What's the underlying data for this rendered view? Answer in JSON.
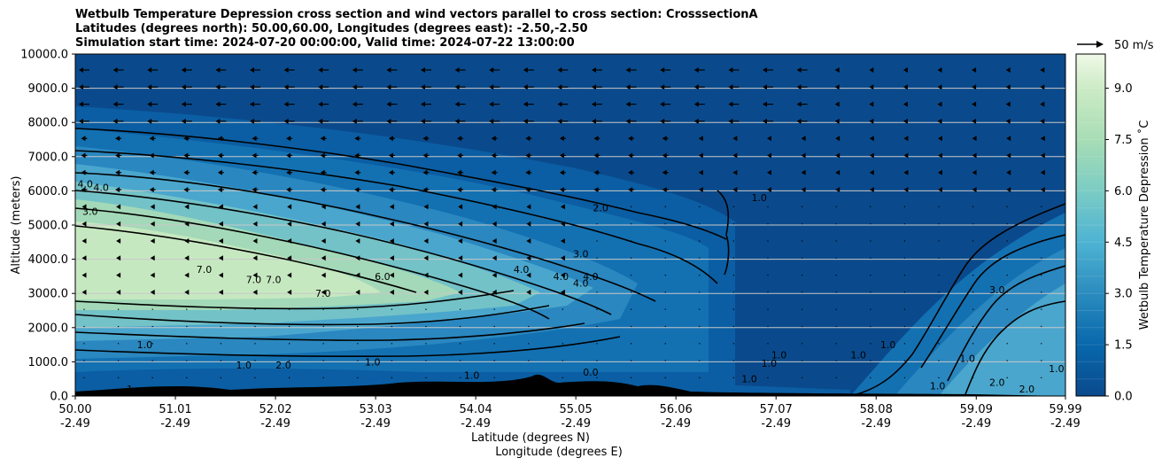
{
  "title": {
    "line1": "Wetbulb Temperature Depression cross section and wind vectors parallel to cross section: CrosssectionA",
    "line2": "Latitudes (degrees north): 50.00,60.00, Longitudes (degrees east): -2.50,-2.50",
    "line3": "Simulation start time: 2024-07-20 00:00:00, Valid time: 2024-07-22 13:00:00"
  },
  "quiver_key": {
    "label": "50 m/s"
  },
  "colorbar": {
    "label": "Wetbulb Temperature Depression ˚C",
    "range": [
      0.0,
      10.0
    ],
    "ticks": [
      "0.0",
      "1.5",
      "3.0",
      "4.5",
      "6.0",
      "7.5",
      "9.0"
    ],
    "tick_values": [
      0.0,
      1.5,
      3.0,
      4.5,
      6.0,
      7.5,
      9.0
    ],
    "colormap": "GnBu",
    "low_color": "#0a4a8c",
    "high_color": "#f0f9e8"
  },
  "chart_data": {
    "type": "heatmap",
    "variable": "Wetbulb Temperature Depression (˚C), filled contours with line contours and wind vectors",
    "ylabel": "Altitude (meters)",
    "xlabel_line1": "Latitude (degrees N)",
    "xlabel_line2": "Longitude (degrees E)",
    "xlim": [
      50.0,
      59.99
    ],
    "ylim": [
      0.0,
      10000.0
    ],
    "grid": "horizontal",
    "x_ticks": [
      {
        "lat": "50.00",
        "lon": "-2.49",
        "value": 50.0
      },
      {
        "lat": "51.01",
        "lon": "-2.49",
        "value": 51.01
      },
      {
        "lat": "52.02",
        "lon": "-2.49",
        "value": 52.02
      },
      {
        "lat": "53.03",
        "lon": "-2.49",
        "value": 53.03
      },
      {
        "lat": "54.04",
        "lon": "-2.49",
        "value": 54.04
      },
      {
        "lat": "55.05",
        "lon": "-2.49",
        "value": 55.05
      },
      {
        "lat": "56.06",
        "lon": "-2.49",
        "value": 56.06
      },
      {
        "lat": "57.07",
        "lon": "-2.49",
        "value": 57.07
      },
      {
        "lat": "58.08",
        "lon": "-2.49",
        "value": 58.08
      },
      {
        "lat": "59.09",
        "lon": "-2.49",
        "value": 59.09
      },
      {
        "lat": "59.99",
        "lon": "-2.49",
        "value": 59.99
      }
    ],
    "y_ticks": [
      "0.0",
      "1000.0",
      "2000.0",
      "3000.0",
      "4000.0",
      "5000.0",
      "6000.0",
      "7000.0",
      "8000.0",
      "9000.0",
      "10000.0"
    ],
    "y_tick_values": [
      0,
      1000,
      2000,
      3000,
      4000,
      5000,
      6000,
      7000,
      8000,
      9000,
      10000
    ],
    "dry_core": {
      "lat_range": [
        50.0,
        54.5
      ],
      "alt_range": [
        2800,
        5000
      ],
      "peak_value": 8.5
    },
    "contour_labels": [
      {
        "text": "4.0",
        "lat": 50.26,
        "alt": 6000
      },
      {
        "text": "4.0",
        "lat": 50.1,
        "alt": 6100
      },
      {
        "text": "3.0",
        "lat": 50.15,
        "alt": 5300
      },
      {
        "text": "7.0",
        "lat": 51.3,
        "alt": 3600
      },
      {
        "text": "7.0",
        "lat": 51.8,
        "alt": 3300
      },
      {
        "text": "7.0",
        "lat": 52.0,
        "alt": 3300
      },
      {
        "text": "7.0",
        "lat": 52.5,
        "alt": 2900
      },
      {
        "text": "6.0",
        "lat": 53.1,
        "alt": 3400
      },
      {
        "text": "4.0",
        "lat": 54.5,
        "alt": 3600
      },
      {
        "text": "4.0",
        "lat": 54.9,
        "alt": 3400
      },
      {
        "text": "4.0",
        "lat": 55.2,
        "alt": 3400
      },
      {
        "text": "4.0",
        "lat": 55.1,
        "alt": 3200
      },
      {
        "text": "3.0",
        "lat": 55.1,
        "alt": 4050
      },
      {
        "text": "2.0",
        "lat": 55.3,
        "alt": 5400
      },
      {
        "text": "1.0",
        "lat": 56.9,
        "alt": 5700
      },
      {
        "text": "3.0",
        "lat": 59.3,
        "alt": 3000
      },
      {
        "text": "1.0",
        "lat": 50.7,
        "alt": 1400
      },
      {
        "text": "1.0",
        "lat": 51.7,
        "alt": 800
      },
      {
        "text": "2.0",
        "lat": 52.1,
        "alt": 800
      },
      {
        "text": "1.0",
        "lat": 53.0,
        "alt": 900
      },
      {
        "text": "1.0",
        "lat": 54.0,
        "alt": 500
      },
      {
        "text": "0.0",
        "lat": 55.2,
        "alt": 600
      },
      {
        "text": "1.0",
        "lat": 56.8,
        "alt": 400
      },
      {
        "text": "1.0",
        "lat": 57.0,
        "alt": 850
      },
      {
        "text": "1.0",
        "lat": 57.1,
        "alt": 1100
      },
      {
        "text": "1.0",
        "lat": 57.9,
        "alt": 1100
      },
      {
        "text": "1.0",
        "lat": 58.2,
        "alt": 1400
      },
      {
        "text": "1.0",
        "lat": 59.0,
        "alt": 1000
      },
      {
        "text": "1.0",
        "lat": 58.7,
        "alt": 200
      },
      {
        "text": "2.0",
        "lat": 59.3,
        "alt": 300
      },
      {
        "text": "2.0",
        "lat": 59.6,
        "alt": 100
      },
      {
        "text": "1.0",
        "lat": 59.9,
        "alt": 700
      },
      {
        "text": "1",
        "lat": 50.55,
        "alt": 100
      }
    ],
    "wind_vectors": "leftward (northward-to-southward) flow strongest above 6000 m, weakening with altitude decrease; near calm east of 56.5"
  }
}
